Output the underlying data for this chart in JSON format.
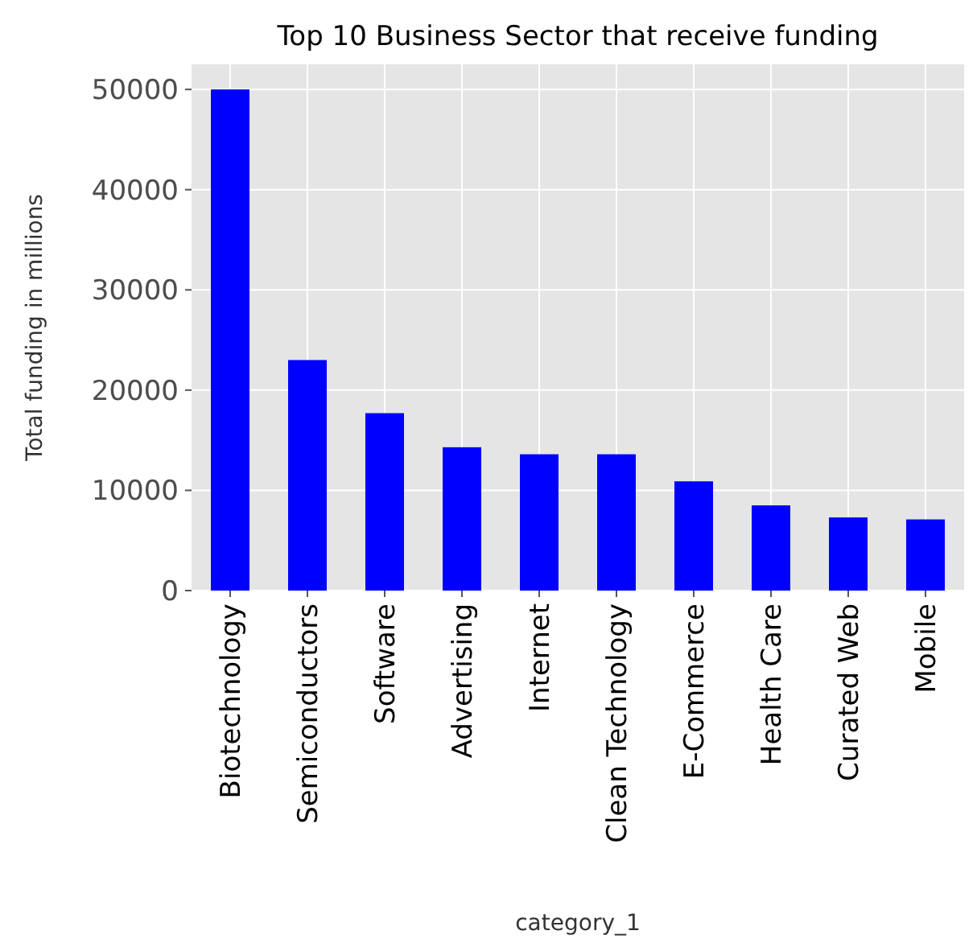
{
  "chart_data": {
    "type": "bar",
    "title": "Top 10 Business Sector that receive funding",
    "xlabel": "category_1",
    "ylabel": "Total funding in millions",
    "categories": [
      "Biotechnology",
      "Semiconductors",
      "Software",
      "Advertising",
      "Internet",
      "Clean Technology",
      "E-Commerce",
      "Health Care",
      "Curated Web",
      "Mobile"
    ],
    "values": [
      50000,
      23000,
      17700,
      14300,
      13600,
      13600,
      10900,
      8500,
      7300,
      7100
    ],
    "color": "#0000ff",
    "ylim": [
      0,
      52500
    ],
    "yticks": [
      0,
      10000,
      20000,
      30000,
      40000,
      50000
    ],
    "grid": true
  }
}
